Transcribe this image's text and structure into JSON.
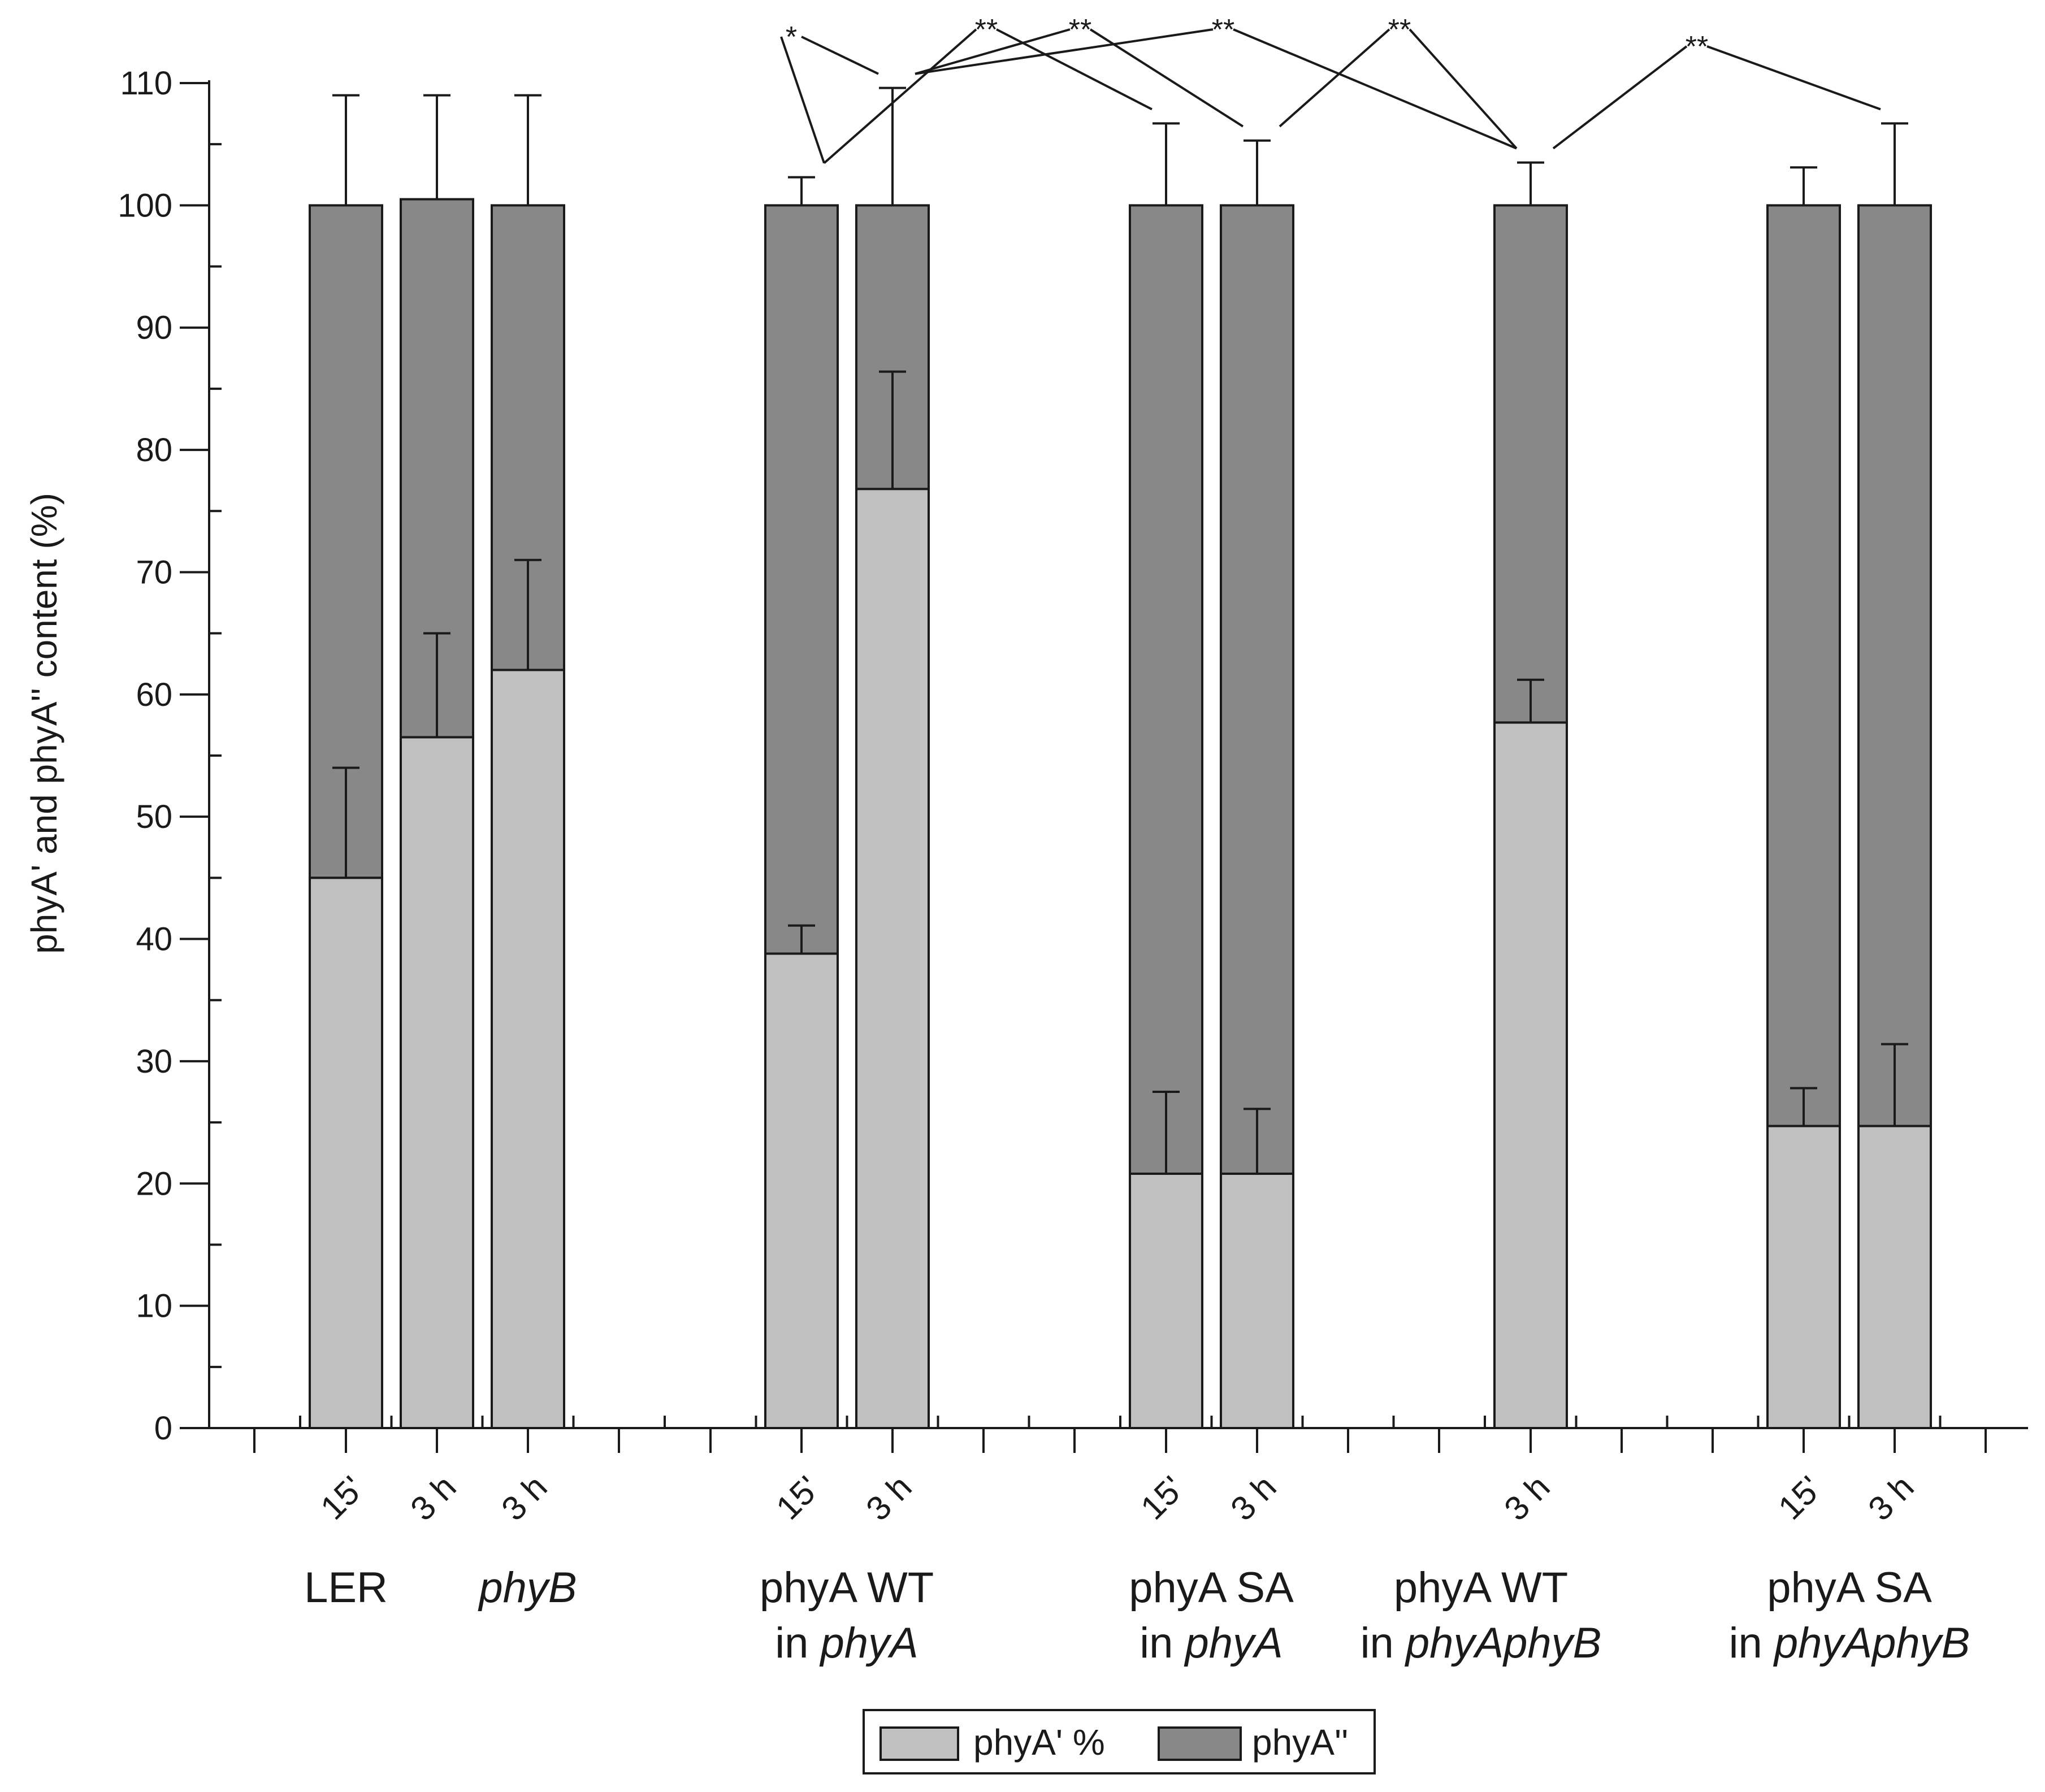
{
  "chart_data": {
    "type": "bar",
    "stacked": true,
    "ylabel": "phyA' and phyA'' content (%)",
    "ylim": [
      0,
      110
    ],
    "yticks": [
      0,
      10,
      20,
      30,
      40,
      50,
      60,
      70,
      80,
      90,
      100,
      110
    ],
    "groups": [
      {
        "id": "ler",
        "label_parts": [
          [
            {
              "t": "LER",
              "i": false
            }
          ]
        ]
      },
      {
        "id": "phyb",
        "label_parts": [
          [
            {
              "t": "phyB",
              "i": true
            }
          ]
        ]
      },
      {
        "id": "wt_phya",
        "label_parts": [
          [
            {
              "t": "phyA WT",
              "i": false
            }
          ],
          [
            {
              "t": "in ",
              "i": false
            },
            {
              "t": "phyA",
              "i": true
            }
          ]
        ]
      },
      {
        "id": "sa_phya",
        "label_parts": [
          [
            {
              "t": "phyA SA",
              "i": false
            }
          ],
          [
            {
              "t": "in ",
              "i": false
            },
            {
              "t": "phyA",
              "i": true
            }
          ]
        ]
      },
      {
        "id": "wt_phyab",
        "label_parts": [
          [
            {
              "t": "phyA WT",
              "i": false
            }
          ],
          [
            {
              "t": "in ",
              "i": false
            },
            {
              "t": "phyAphyB",
              "i": true
            }
          ]
        ]
      },
      {
        "id": "sa_phyab",
        "label_parts": [
          [
            {
              "t": "phyA SA",
              "i": false
            }
          ],
          [
            {
              "t": "in ",
              "i": false
            },
            {
              "t": "phyAphyB",
              "i": true
            }
          ]
        ]
      }
    ],
    "bars": [
      {
        "group": "ler",
        "time": "15'",
        "phyA_prime": 45.0,
        "phyA_prime_err": 9.0,
        "total": 100.0,
        "total_err": 9.0
      },
      {
        "group": "ler",
        "time": "3 h",
        "phyA_prime": 56.5,
        "phyA_prime_err": 8.5,
        "total": 100.5,
        "total_err": 8.5
      },
      {
        "group": "phyb",
        "time": "3 h",
        "phyA_prime": 62.0,
        "phyA_prime_err": 9.0,
        "total": 100.0,
        "total_err": 9.0
      },
      {
        "group": "wt_phya",
        "time": "15'",
        "phyA_prime": 38.8,
        "phyA_prime_err": 2.3,
        "total": 100.0,
        "total_err": 2.3
      },
      {
        "group": "wt_phya",
        "time": "3 h",
        "phyA_prime": 76.8,
        "phyA_prime_err": 9.6,
        "total": 100.0,
        "total_err": 9.6
      },
      {
        "group": "sa_phya",
        "time": "15'",
        "phyA_prime": 20.8,
        "phyA_prime_err": 6.7,
        "total": 100.0,
        "total_err": 6.7
      },
      {
        "group": "sa_phya",
        "time": "3 h",
        "phyA_prime": 20.8,
        "phyA_prime_err": 5.3,
        "total": 100.0,
        "total_err": 5.3
      },
      {
        "group": "wt_phyab",
        "time": "3 h",
        "phyA_prime": 57.7,
        "phyA_prime_err": 3.5,
        "total": 100.0,
        "total_err": 3.5
      },
      {
        "group": "sa_phyab",
        "time": "15'",
        "phyA_prime": 24.7,
        "phyA_prime_err": 3.1,
        "total": 100.0,
        "total_err": 3.1
      },
      {
        "group": "sa_phyab",
        "time": "3 h",
        "phyA_prime": 24.7,
        "phyA_prime_err": 6.7,
        "total": 100.0,
        "total_err": 6.7
      }
    ],
    "significance": [
      {
        "bars": [
          3,
          4
        ],
        "label": "*"
      },
      {
        "bars": [
          3,
          5
        ],
        "label": "**"
      },
      {
        "bars": [
          4,
          6
        ],
        "label": "**"
      },
      {
        "bars": [
          4,
          7
        ],
        "label": "**"
      },
      {
        "bars": [
          6,
          7
        ],
        "label": "**"
      },
      {
        "bars": [
          7,
          9
        ],
        "label": "**"
      }
    ],
    "legend": [
      {
        "label": "phyA' %",
        "color": "#c0c0c0"
      },
      {
        "label": "phyA''",
        "color": "#888888"
      }
    ],
    "colors": {
      "phyA_prime": "#c0c0c0",
      "phyA_double_prime": "#888888",
      "ink": "#1a1a1a"
    }
  }
}
